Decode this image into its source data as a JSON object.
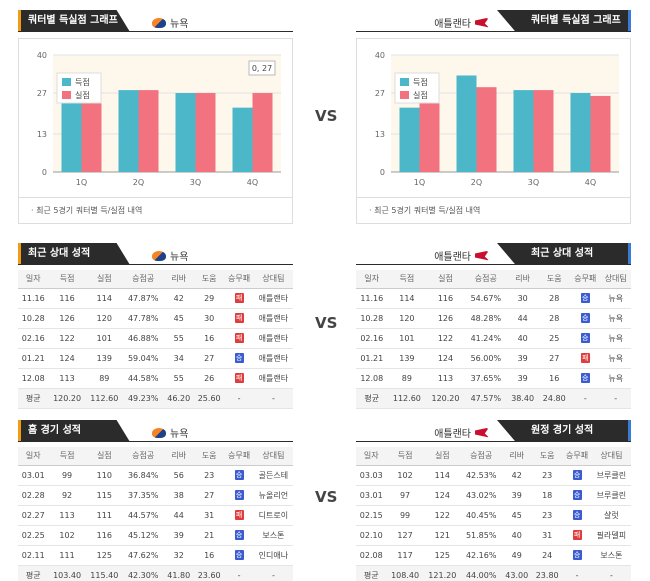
{
  "colors": {
    "scored": "#4bb7c8",
    "conceded": "#f2737f",
    "win": "#3b5bd1",
    "loss": "#e03c3c"
  },
  "vs_label": "VS",
  "chart_section": {
    "left": {
      "title": "쿼터별 득실점 그래프",
      "team": "뉴욕",
      "team_icon": "knicks-logo-icon"
    },
    "right": {
      "title": "쿼터별 득실점 그래프",
      "team": "애틀랜타",
      "team_icon": "hawks-logo-icon"
    },
    "note": "최근 5경기 쿼터별 득/실점 내역"
  },
  "chart_data": [
    {
      "type": "bar",
      "categories": [
        "1Q",
        "2Q",
        "3Q",
        "4Q"
      ],
      "series": [
        {
          "name": "득점",
          "values": [
            24,
            28,
            27,
            22
          ]
        },
        {
          "name": "실점",
          "values": [
            26,
            28,
            27,
            27
          ]
        }
      ],
      "ylim": [
        0,
        40
      ],
      "yticks": [
        0,
        13,
        27,
        40
      ],
      "legend": "top-left",
      "annotation": "0, 27"
    },
    {
      "type": "bar",
      "categories": [
        "1Q",
        "2Q",
        "3Q",
        "4Q"
      ],
      "series": [
        {
          "name": "득점",
          "values": [
            22,
            33,
            28,
            27
          ]
        },
        {
          "name": "실점",
          "values": [
            26,
            29,
            28,
            26
          ]
        }
      ],
      "ylim": [
        0,
        40
      ],
      "yticks": [
        0,
        13,
        27,
        40
      ],
      "legend": "top-left"
    }
  ],
  "tables": {
    "columns": [
      "일자",
      "득점",
      "실점",
      "승점공",
      "리바",
      "도움",
      "승무패",
      "상대팀"
    ],
    "recent_left": {
      "title": "최근 상대 성적",
      "team": "뉴욕",
      "rows": [
        [
          "11.16",
          "116",
          "114",
          "47.87%",
          "42",
          "29",
          "패",
          "애틀랜타"
        ],
        [
          "10.28",
          "126",
          "120",
          "47.78%",
          "45",
          "30",
          "패",
          "애틀랜타"
        ],
        [
          "02.16",
          "122",
          "101",
          "46.88%",
          "55",
          "16",
          "패",
          "애틀랜타"
        ],
        [
          "01.21",
          "124",
          "139",
          "59.04%",
          "34",
          "27",
          "승",
          "애틀랜타"
        ],
        [
          "12.08",
          "113",
          "89",
          "44.58%",
          "55",
          "26",
          "패",
          "애틀랜타"
        ]
      ],
      "avg": [
        "평균",
        "120.20",
        "112.60",
        "49.23%",
        "46.20",
        "25.60",
        "-",
        "-"
      ]
    },
    "recent_right": {
      "title": "최근 상대 성적",
      "team": "애틀랜타",
      "rows": [
        [
          "11.16",
          "114",
          "116",
          "54.67%",
          "30",
          "28",
          "승",
          "뉴욕"
        ],
        [
          "10.28",
          "120",
          "126",
          "48.28%",
          "44",
          "28",
          "승",
          "뉴욕"
        ],
        [
          "02.16",
          "101",
          "122",
          "41.24%",
          "40",
          "25",
          "승",
          "뉴욕"
        ],
        [
          "01.21",
          "139",
          "124",
          "56.00%",
          "39",
          "27",
          "패",
          "뉴욕"
        ],
        [
          "12.08",
          "89",
          "113",
          "37.65%",
          "39",
          "16",
          "승",
          "뉴욕"
        ]
      ],
      "avg": [
        "평균",
        "112.60",
        "120.20",
        "47.57%",
        "38.40",
        "24.80",
        "-",
        "-"
      ]
    },
    "home_left": {
      "title": "홈 경기 성적",
      "team": "뉴욕",
      "rows": [
        [
          "03.01",
          "99",
          "110",
          "36.84%",
          "56",
          "23",
          "승",
          "골든스테"
        ],
        [
          "02.28",
          "92",
          "115",
          "37.35%",
          "38",
          "27",
          "승",
          "뉴올리언"
        ],
        [
          "02.27",
          "113",
          "111",
          "44.57%",
          "44",
          "31",
          "패",
          "디트로이"
        ],
        [
          "02.25",
          "102",
          "116",
          "45.12%",
          "39",
          "21",
          "승",
          "보스톤"
        ],
        [
          "02.11",
          "111",
          "125",
          "47.62%",
          "32",
          "16",
          "승",
          "인디애나"
        ]
      ],
      "avg": [
        "평균",
        "103.40",
        "115.40",
        "42.30%",
        "41.80",
        "23.60",
        "-",
        "-"
      ]
    },
    "away_right": {
      "title": "원정 경기 성적",
      "team": "애틀랜타",
      "rows": [
        [
          "03.03",
          "102",
          "114",
          "42.53%",
          "42",
          "23",
          "승",
          "브루클린"
        ],
        [
          "03.01",
          "97",
          "124",
          "43.02%",
          "39",
          "18",
          "승",
          "브루클린"
        ],
        [
          "02.15",
          "99",
          "122",
          "40.45%",
          "45",
          "23",
          "승",
          "샬럿"
        ],
        [
          "02.10",
          "127",
          "121",
          "51.85%",
          "40",
          "31",
          "패",
          "필라델피"
        ],
        [
          "02.08",
          "117",
          "125",
          "42.16%",
          "49",
          "24",
          "승",
          "보스톤"
        ]
      ],
      "avg": [
        "평균",
        "108.40",
        "121.20",
        "44.00%",
        "43.00",
        "23.80",
        "-",
        "-"
      ]
    }
  }
}
